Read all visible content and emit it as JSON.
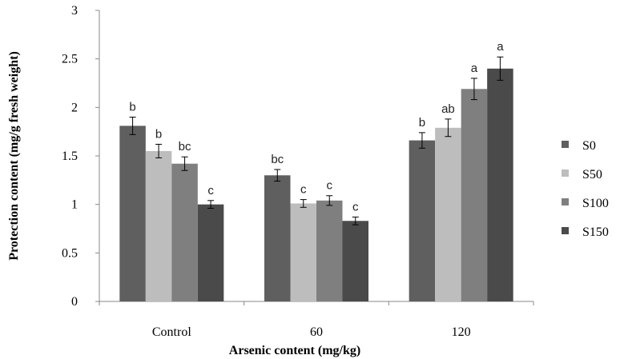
{
  "chart_data": {
    "type": "bar",
    "title": "",
    "xlabel": "Arsenic content (mg/kg)",
    "ylabel": "Protection content (mg/g fresh weight)",
    "ylim": [
      0,
      3
    ],
    "yticks": [
      "0",
      "0.5",
      "1",
      "1.5",
      "2",
      "2.5",
      "3"
    ],
    "categories": [
      "Control",
      "60",
      "120"
    ],
    "series": [
      {
        "name": "S0",
        "color": "#5f5f5f",
        "values": [
          1.81,
          1.3,
          1.66
        ],
        "errors": [
          0.09,
          0.06,
          0.08
        ],
        "letters": [
          "b",
          "bc",
          "b"
        ]
      },
      {
        "name": "S50",
        "color": "#bdbdbd",
        "values": [
          1.55,
          1.01,
          1.79
        ],
        "errors": [
          0.07,
          0.04,
          0.09
        ],
        "letters": [
          "b",
          "c",
          "ab"
        ]
      },
      {
        "name": "S100",
        "color": "#7f7f7f",
        "values": [
          1.42,
          1.04,
          2.19
        ],
        "errors": [
          0.07,
          0.05,
          0.11
        ],
        "letters": [
          "bc",
          "c",
          "a"
        ]
      },
      {
        "name": "S150",
        "color": "#4a4a4a",
        "values": [
          1.0,
          0.83,
          2.4
        ],
        "errors": [
          0.04,
          0.04,
          0.12
        ],
        "letters": [
          "c",
          "c",
          "a"
        ]
      }
    ],
    "grid": false,
    "legend_position": "right"
  }
}
